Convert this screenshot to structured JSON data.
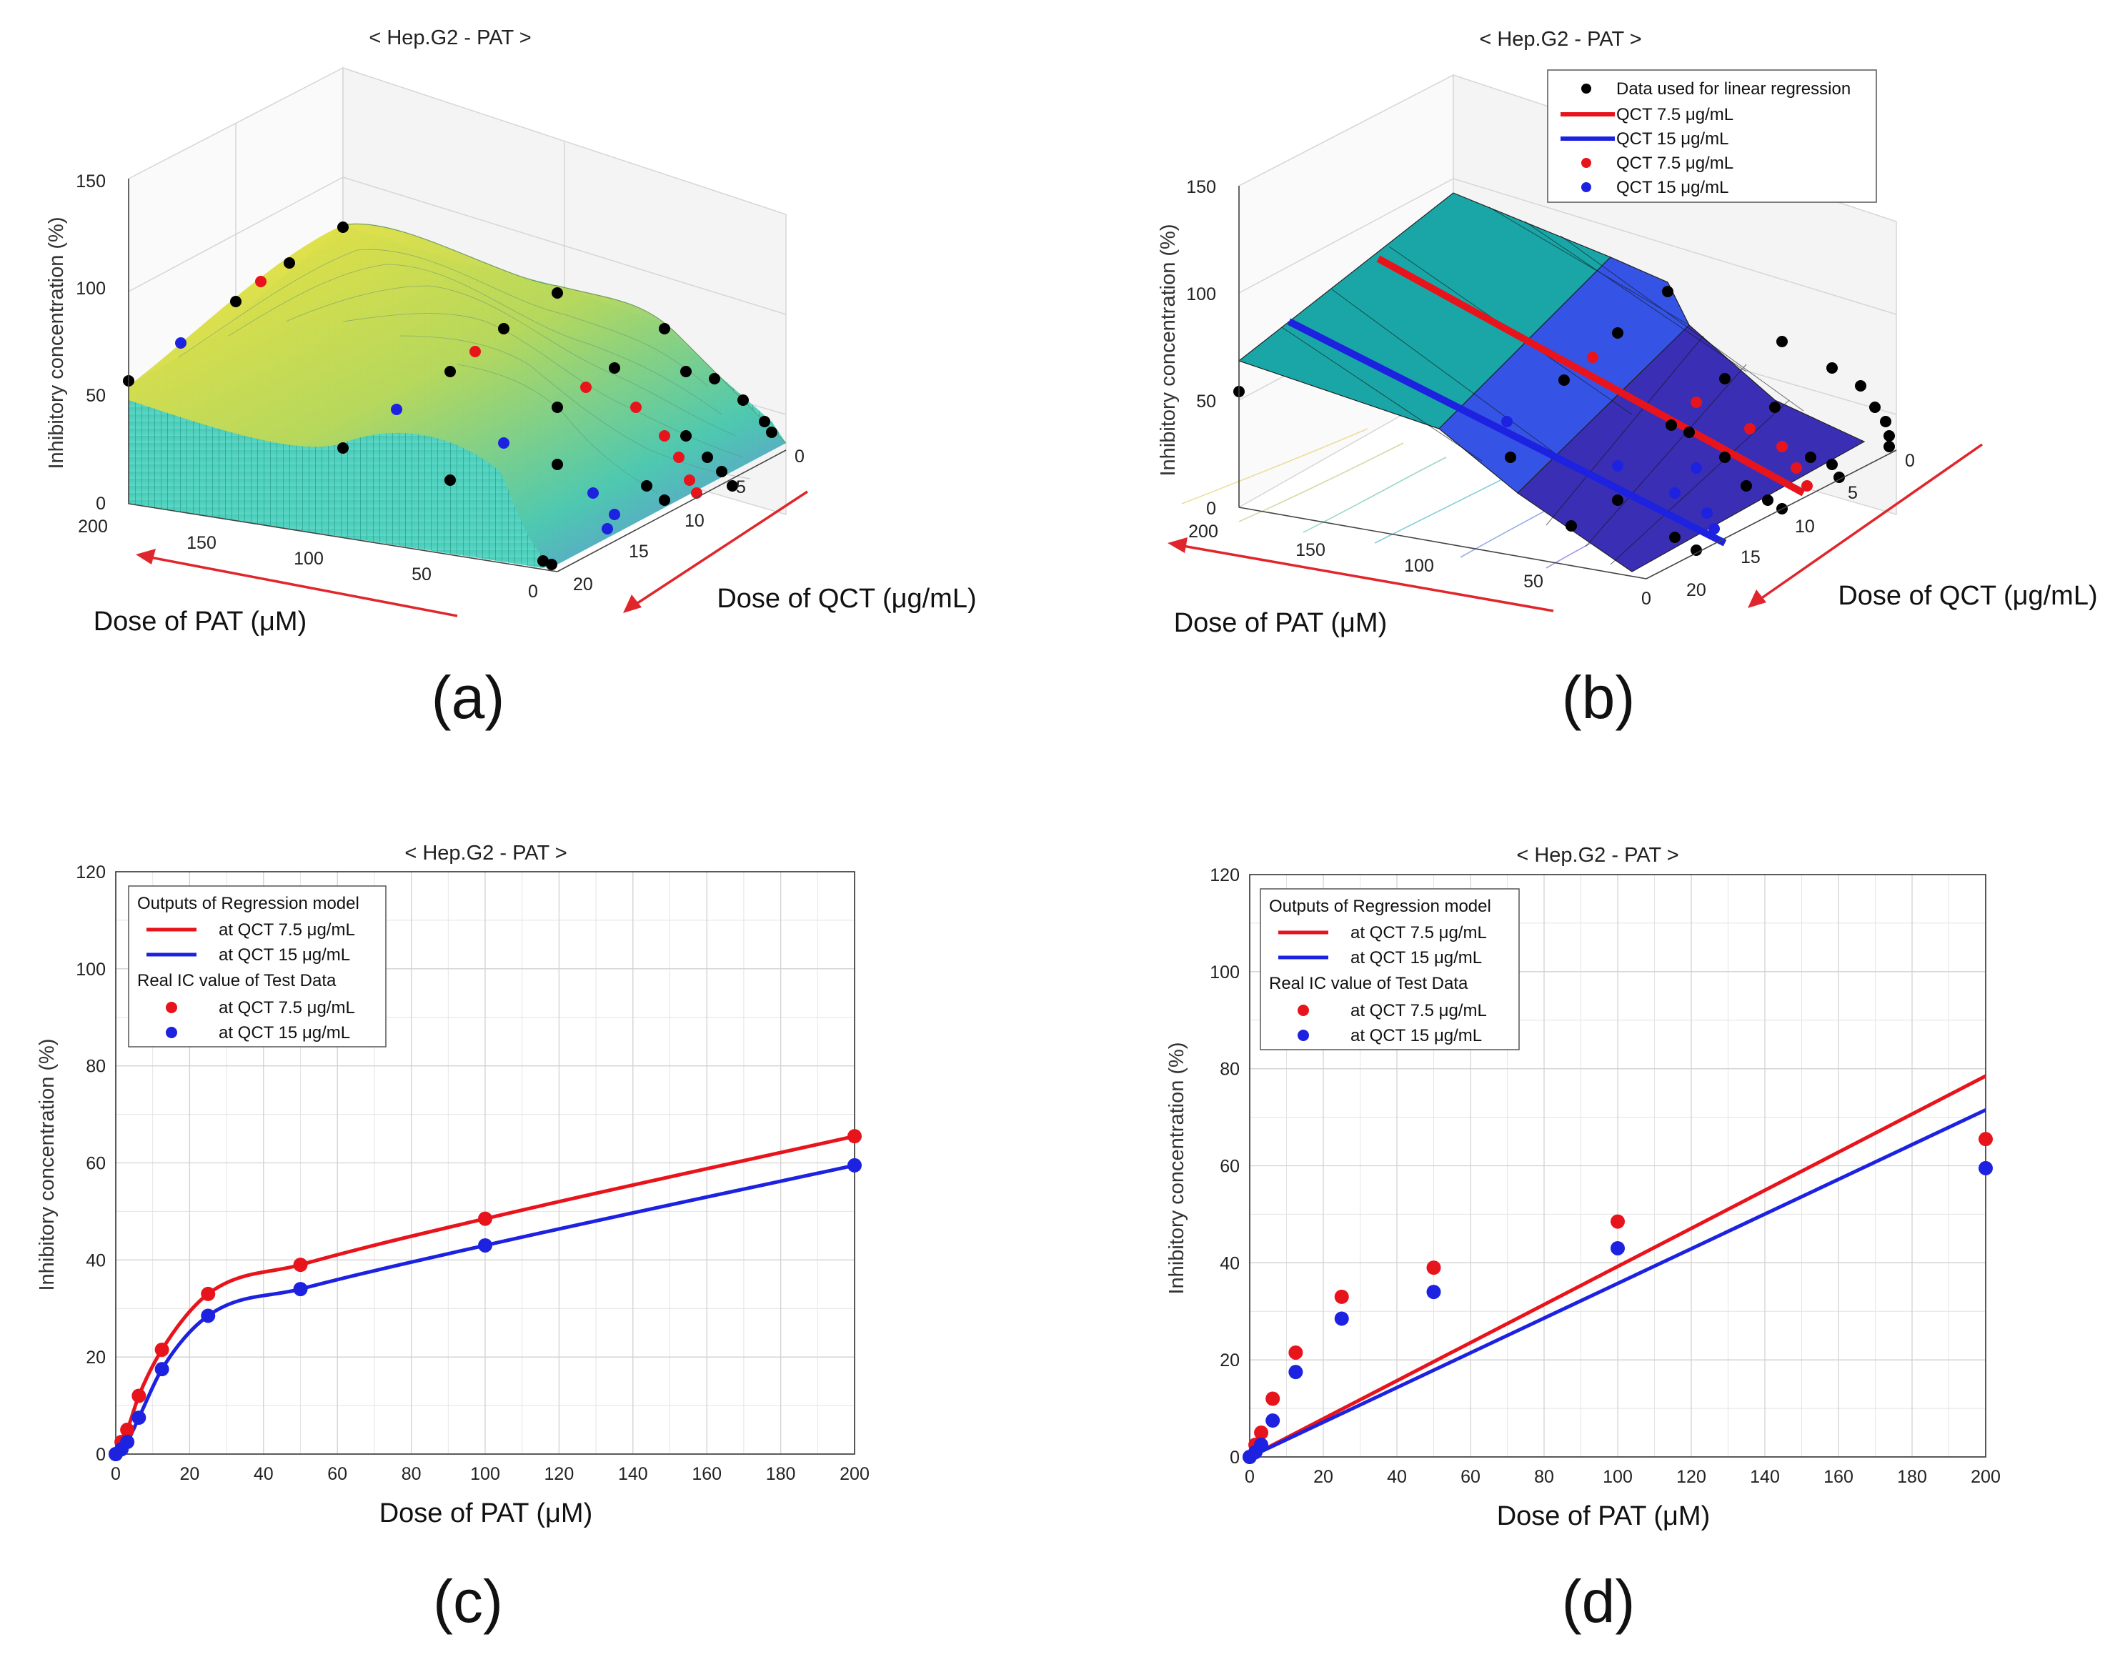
{
  "panel_labels": [
    "(a)",
    "(b)",
    "(c)",
    "(d)"
  ],
  "colors": {
    "red": "#e8141c",
    "blue": "#1c22e0",
    "black": "#000000",
    "grid": "#dcdcdc",
    "arrow": "#e0262b",
    "surface_yellow": "#f2e13c",
    "surface_teal": "#3cc6b6",
    "plane_teal": "#1aa6a6",
    "plane_blue": "#3554e6",
    "plane_purple": "#3a2fb4"
  },
  "chart_data": [
    {
      "panel": "a",
      "type": "surface3d",
      "title": "< Hep.G2 - PAT >",
      "zlabel": "Inhibitory concentration (%)",
      "xlabel": "Dose of PAT (μM)",
      "ylabel": "Dose of QCT (μg/mL)",
      "z_ticks": [
        "0",
        "50",
        "100",
        "150"
      ],
      "pat_ticks": [
        "200",
        "150",
        "100",
        "50",
        "0"
      ],
      "qct_ticks": [
        "0",
        "5",
        "10",
        "15",
        "20"
      ],
      "zlim": [
        0,
        150
      ]
    },
    {
      "panel": "b",
      "type": "surface3d",
      "title": "< Hep.G2 - PAT >",
      "zlabel": "Inhibitory concentration (%)",
      "xlabel": "Dose of PAT (μM)",
      "ylabel": "Dose of QCT (μg/mL)",
      "z_ticks": [
        "0",
        "50",
        "100",
        "150"
      ],
      "pat_ticks": [
        "200",
        "150",
        "100",
        "50",
        "0"
      ],
      "qct_ticks": [
        "0",
        "5",
        "10",
        "15",
        "20"
      ],
      "zlim": [
        0,
        150
      ],
      "legend": {
        "position": "top-right",
        "entries": [
          {
            "label": "Data used for linear regression",
            "kind": "marker",
            "color": "#000000"
          },
          {
            "label": "QCT 7.5 μg/mL",
            "kind": "line",
            "color": "#e8141c"
          },
          {
            "label": "QCT 15 μg/mL",
            "kind": "line",
            "color": "#1c22e0"
          },
          {
            "label": "QCT 7.5 μg/mL",
            "kind": "marker",
            "color": "#e8141c"
          },
          {
            "label": "QCT 15 μg/mL",
            "kind": "marker",
            "color": "#1c22e0"
          }
        ]
      }
    },
    {
      "panel": "c",
      "type": "line",
      "title": "< Hep.G2 - PAT >",
      "xlabel": "Dose of PAT (μM)",
      "ylabel": "Inhibitory concentration (%)",
      "xlim": [
        0,
        200
      ],
      "ylim": [
        0,
        120
      ],
      "xticks": [
        0,
        20,
        40,
        60,
        80,
        100,
        120,
        140,
        160,
        180,
        200
      ],
      "yticks": [
        0,
        20,
        40,
        60,
        80,
        100,
        120
      ],
      "grid": true,
      "legend": {
        "position": "top-left",
        "header1": "Outputs of Regression model",
        "line1": "at QCT 7.5 μg/mL",
        "line2": "at QCT 15 μg/mL",
        "header2": "Real IC value of Test Data",
        "dot1": "at QCT 7.5 μg/mL",
        "dot2": "at QCT 15 μg/mL"
      },
      "series": [
        {
          "name": "at QCT 7.5 μg/mL",
          "kind": "curve",
          "color": "#e8141c",
          "x": [
            0,
            1.56,
            3.12,
            6.25,
            12.5,
            25,
            50,
            100,
            200
          ],
          "y": [
            0,
            2.5,
            5,
            12,
            21.5,
            33,
            39,
            48.5,
            65.5
          ]
        },
        {
          "name": "at QCT 15 μg/mL",
          "kind": "curve",
          "color": "#1c22e0",
          "x": [
            0,
            1.56,
            3.12,
            6.25,
            12.5,
            25,
            50,
            100,
            200
          ],
          "y": [
            0,
            1,
            2.5,
            7.5,
            17.5,
            28.5,
            34,
            43,
            59.5
          ]
        },
        {
          "name": "at QCT 7.5 μg/mL",
          "kind": "points",
          "color": "#e8141c",
          "x": [
            0,
            1.56,
            3.12,
            6.25,
            12.5,
            25,
            50,
            100,
            200
          ],
          "y": [
            0,
            2.5,
            5,
            12,
            21.5,
            33,
            39,
            48.5,
            65.5
          ]
        },
        {
          "name": "at QCT 15 μg/mL",
          "kind": "points",
          "color": "#1c22e0",
          "x": [
            0,
            1.56,
            3.12,
            6.25,
            12.5,
            25,
            50,
            100,
            200
          ],
          "y": [
            0,
            1,
            2.5,
            7.5,
            17.5,
            28.5,
            34,
            43,
            59.5
          ]
        }
      ]
    },
    {
      "panel": "d",
      "type": "line",
      "title": "< Hep.G2 - PAT >",
      "xlabel": "Dose of PAT (μM)",
      "ylabel": "Inhibitory concentration (%)",
      "xlim": [
        0,
        200
      ],
      "ylim": [
        0,
        120
      ],
      "xticks": [
        0,
        20,
        40,
        60,
        80,
        100,
        120,
        140,
        160,
        180,
        200
      ],
      "yticks": [
        0,
        20,
        40,
        60,
        80,
        100,
        120
      ],
      "grid": true,
      "legend": {
        "position": "top-left",
        "header1": "Outputs of Regression model",
        "line1": "at QCT 7.5 μg/mL",
        "line2": "at QCT 15 μg/mL",
        "header2": "Real IC value of Test Data",
        "dot1": "at QCT 7.5 μg/mL",
        "dot2": "at QCT 15 μg/mL"
      },
      "series": [
        {
          "name": "at QCT 7.5 μg/mL",
          "kind": "curve",
          "color": "#e8141c",
          "x": [
            0,
            200
          ],
          "y": [
            0,
            78.5
          ]
        },
        {
          "name": "at QCT 15 μg/mL",
          "kind": "curve",
          "color": "#1c22e0",
          "x": [
            0,
            200
          ],
          "y": [
            0,
            71.5
          ]
        },
        {
          "name": "at QCT 7.5 μg/mL",
          "kind": "points",
          "color": "#e8141c",
          "x": [
            0,
            1.56,
            3.12,
            6.25,
            12.5,
            25,
            50,
            100,
            200
          ],
          "y": [
            0,
            2.5,
            5,
            12,
            21.5,
            33,
            39,
            48.5,
            65.5
          ]
        },
        {
          "name": "at QCT 15 μg/mL",
          "kind": "points",
          "color": "#1c22e0",
          "x": [
            0,
            1.56,
            3.12,
            6.25,
            12.5,
            25,
            50,
            100,
            200
          ],
          "y": [
            0,
            1,
            2.5,
            7.5,
            17.5,
            28.5,
            34,
            43,
            59.5
          ]
        }
      ]
    }
  ]
}
